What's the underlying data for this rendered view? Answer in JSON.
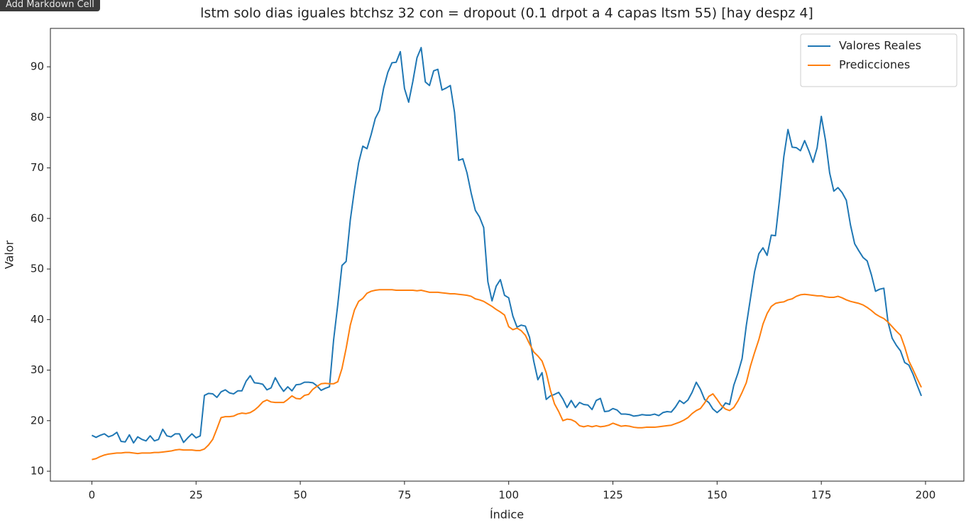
{
  "tooltip": "Add Markdown Cell",
  "chart_data": {
    "type": "line",
    "title": "lstm solo dias iguales btchsz 32 con = dropout (0.1 drpot a 4 capas ltsm 55) [hay despz 4]",
    "xlabel": "Índice",
    "ylabel": "Valor",
    "x": [
      0,
      1,
      2,
      3,
      4,
      5,
      6,
      7,
      8,
      9,
      10,
      11,
      12,
      13,
      14,
      15,
      16,
      17,
      18,
      19,
      20,
      21,
      22,
      23,
      24,
      25,
      26,
      27,
      28,
      29,
      30,
      31,
      32,
      33,
      34,
      35,
      36,
      37,
      38,
      39,
      40,
      41,
      42,
      43,
      44,
      45,
      46,
      47,
      48,
      49,
      50,
      51,
      52,
      53,
      54,
      55,
      56,
      57,
      58,
      59,
      60,
      61,
      62,
      63,
      64,
      65,
      66,
      67,
      68,
      69,
      70,
      71,
      72,
      73,
      74,
      75,
      76,
      77,
      78,
      79,
      80,
      81,
      82,
      83,
      84,
      85,
      86,
      87,
      88,
      89,
      90,
      91,
      92,
      93,
      94,
      95,
      96,
      97,
      98,
      99,
      100,
      101,
      102,
      103,
      104,
      105,
      106,
      107,
      108,
      109,
      110,
      111,
      112,
      113,
      114,
      115,
      116,
      117,
      118,
      119,
      120,
      121,
      122,
      123,
      124,
      125,
      126,
      127,
      128,
      129,
      130,
      131,
      132,
      133,
      134,
      135,
      136,
      137,
      138,
      139,
      140,
      141,
      142,
      143,
      144,
      145,
      146,
      147,
      148,
      149,
      150,
      151,
      152,
      153,
      154,
      155,
      156,
      157,
      158,
      159,
      160,
      161,
      162,
      163,
      164,
      165,
      166,
      167,
      168,
      169,
      170,
      171,
      172,
      173,
      174,
      175,
      176,
      177,
      178,
      179,
      180,
      181,
      182,
      183,
      184,
      185,
      186,
      187,
      188,
      189,
      190,
      191,
      192,
      193,
      194,
      195,
      196,
      197,
      198,
      199
    ],
    "series": [
      {
        "name": "Valores Reales",
        "color": "#1f77b4",
        "values": [
          17.1,
          16.7,
          17.1,
          17.4,
          16.8,
          17.1,
          17.7,
          15.9,
          15.8,
          17.2,
          15.6,
          16.8,
          16.3,
          16.0,
          17.0,
          16.0,
          16.3,
          18.3,
          17.0,
          16.8,
          17.4,
          17.4,
          15.7,
          16.6,
          17.4,
          16.6,
          17.0,
          25.0,
          25.4,
          25.3,
          24.6,
          25.7,
          26.1,
          25.5,
          25.3,
          25.9,
          25.9,
          27.8,
          28.9,
          27.5,
          27.4,
          27.2,
          26.1,
          26.5,
          28.5,
          27.0,
          25.8,
          26.7,
          25.9,
          27.1,
          27.2,
          27.6,
          27.6,
          27.5,
          26.9,
          26.0,
          26.4,
          26.7,
          36.0,
          43.0,
          50.7,
          51.5,
          59.7,
          65.7,
          71.0,
          74.3,
          73.8,
          76.6,
          79.8,
          81.4,
          85.8,
          88.9,
          90.8,
          90.9,
          93.0,
          85.7,
          83.0,
          87.1,
          91.8,
          93.8,
          87.0,
          86.3,
          89.2,
          89.5,
          85.4,
          85.8,
          86.3,
          81.0,
          71.5,
          71.8,
          69.0,
          65.0,
          61.6,
          60.3,
          58.2,
          47.5,
          43.7,
          46.6,
          47.9,
          44.8,
          44.3,
          40.7,
          38.5,
          38.9,
          38.7,
          36.5,
          31.8,
          28.1,
          29.5,
          24.2,
          24.9,
          25.2,
          25.6,
          24.3,
          22.6,
          24.0,
          22.6,
          23.6,
          23.2,
          23.1,
          22.2,
          24.0,
          24.4,
          21.8,
          21.9,
          22.4,
          22.1,
          21.3,
          21.3,
          21.2,
          20.9,
          21.0,
          21.2,
          21.1,
          21.1,
          21.3,
          21.0,
          21.6,
          21.8,
          21.7,
          22.7,
          24.0,
          23.4,
          24.1,
          25.6,
          27.6,
          26.2,
          24.2,
          23.6,
          22.3,
          21.6,
          22.3,
          23.5,
          23.2,
          27.0,
          29.4,
          32.3,
          38.8,
          44.2,
          49.5,
          53.0,
          54.2,
          52.7,
          56.7,
          56.6,
          64.0,
          72.2,
          77.6,
          74.1,
          74.0,
          73.4,
          75.4,
          73.4,
          71.1,
          74.0,
          80.2,
          75.5,
          69.0,
          65.4,
          66.1,
          65.1,
          63.6,
          58.7,
          55.0,
          53.6,
          52.3,
          51.6,
          48.9,
          45.6,
          46.0,
          46.2,
          39.5,
          36.3,
          34.9,
          33.8,
          31.5,
          31.0,
          29.2,
          27.0,
          24.9
        ]
      },
      {
        "name": "Predicciones",
        "color": "#ff7f0e",
        "values": [
          12.3,
          12.5,
          12.9,
          13.2,
          13.4,
          13.5,
          13.6,
          13.6,
          13.7,
          13.7,
          13.6,
          13.5,
          13.6,
          13.6,
          13.6,
          13.7,
          13.7,
          13.8,
          13.9,
          14.0,
          14.2,
          14.3,
          14.2,
          14.2,
          14.2,
          14.1,
          14.1,
          14.4,
          15.2,
          16.3,
          18.4,
          20.6,
          20.8,
          20.8,
          20.9,
          21.3,
          21.5,
          21.4,
          21.6,
          22.1,
          22.8,
          23.7,
          24.1,
          23.7,
          23.6,
          23.6,
          23.6,
          24.2,
          24.9,
          24.4,
          24.3,
          25.0,
          25.2,
          26.2,
          26.8,
          27.3,
          27.4,
          27.3,
          27.3,
          27.7,
          30.3,
          34.3,
          38.9,
          41.9,
          43.6,
          44.2,
          45.2,
          45.6,
          45.8,
          45.9,
          45.9,
          45.9,
          45.9,
          45.8,
          45.8,
          45.8,
          45.8,
          45.8,
          45.7,
          45.8,
          45.6,
          45.4,
          45.4,
          45.4,
          45.3,
          45.2,
          45.1,
          45.1,
          45.0,
          44.9,
          44.8,
          44.6,
          44.1,
          43.9,
          43.6,
          43.1,
          42.6,
          42.0,
          41.5,
          40.9,
          38.6,
          38.0,
          38.3,
          37.8,
          36.9,
          35.2,
          33.6,
          32.8,
          31.8,
          29.5,
          26.0,
          23.3,
          21.8,
          20.0,
          20.3,
          20.2,
          19.8,
          19.0,
          18.8,
          19.0,
          18.8,
          19.0,
          18.8,
          18.9,
          19.1,
          19.5,
          19.2,
          18.9,
          19.0,
          18.9,
          18.7,
          18.6,
          18.6,
          18.7,
          18.7,
          18.7,
          18.8,
          18.9,
          19.0,
          19.1,
          19.4,
          19.7,
          20.1,
          20.6,
          21.4,
          22.0,
          22.4,
          23.5,
          24.8,
          25.3,
          24.2,
          23.0,
          22.3,
          22.0,
          22.6,
          23.9,
          25.6,
          27.5,
          30.8,
          33.5,
          36.0,
          39.1,
          41.2,
          42.6,
          43.2,
          43.4,
          43.5,
          43.9,
          44.1,
          44.6,
          44.9,
          45.0,
          44.9,
          44.8,
          44.7,
          44.7,
          44.5,
          44.4,
          44.4,
          44.6,
          44.3,
          43.9,
          43.6,
          43.4,
          43.2,
          42.9,
          42.4,
          41.8,
          41.1,
          40.6,
          40.2,
          39.5,
          38.6,
          37.7,
          36.9,
          34.6,
          31.8,
          30.1,
          28.3,
          26.6
        ]
      }
    ],
    "xlim": [
      -9.95,
      209.2
    ],
    "ylim": [
      8.04,
      97.6
    ],
    "xticks": [
      0,
      25,
      50,
      75,
      100,
      125,
      150,
      175,
      200
    ],
    "yticks": [
      10,
      20,
      30,
      40,
      50,
      60,
      70,
      80,
      90
    ],
    "grid": false,
    "legend": "upper right"
  }
}
